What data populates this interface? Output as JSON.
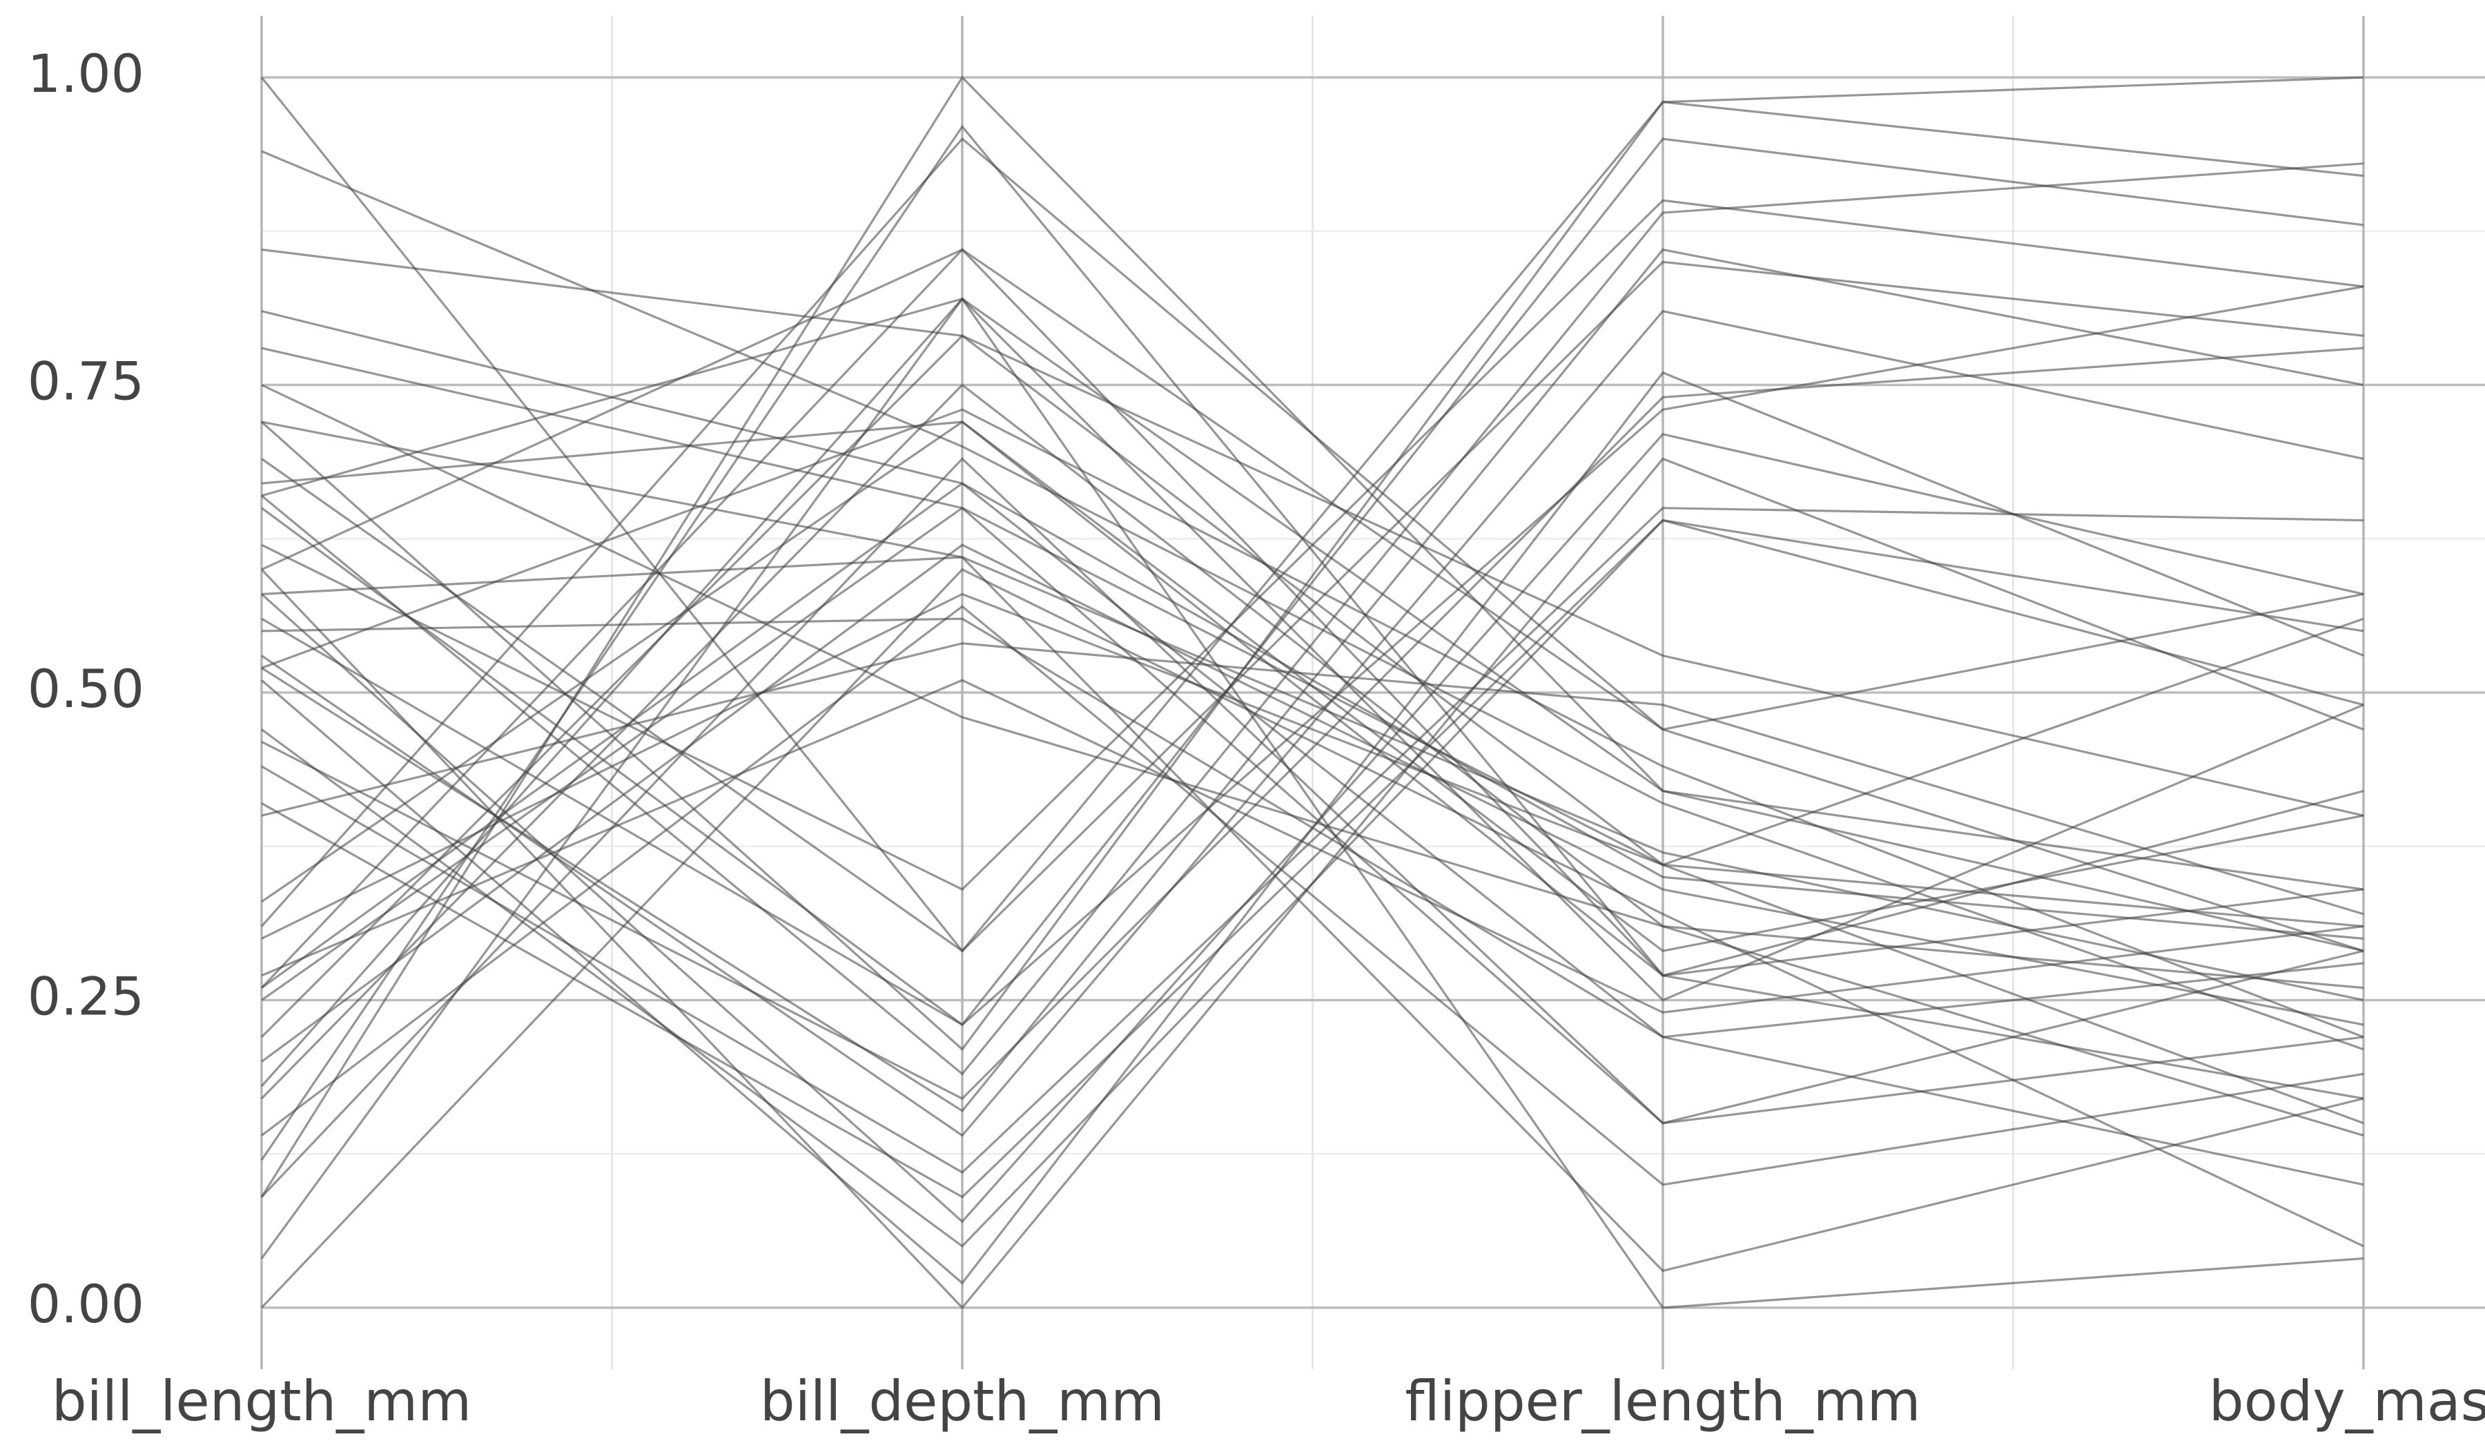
{
  "chart_data": {
    "type": "parallel",
    "categories": [
      "bill_length_mm",
      "bill_depth_mm",
      "flipper_length_mm",
      "body_mass"
    ],
    "ylim": [
      -0.05,
      1.05
    ],
    "yticks": [
      {
        "value": 0,
        "label": "0.00"
      },
      {
        "value": 0.25,
        "label": "0.25"
      },
      {
        "value": 0.5,
        "label": "0.50"
      },
      {
        "value": 0.75,
        "label": "0.75"
      },
      {
        "value": 1,
        "label": "1.00"
      }
    ],
    "minor_yticks": [
      0.125,
      0.375,
      0.625,
      0.875
    ],
    "grid": true,
    "color": "#404040",
    "series": [
      {
        "values": [
          0.25,
          0.65,
          0.15,
          0.29
        ]
      },
      {
        "values": [
          0.27,
          0.51,
          0.24,
          0.31
        ]
      },
      {
        "values": [
          0.3,
          0.58,
          0.36,
          0.15
        ]
      },
      {
        "values": [
          0.17,
          0.75,
          0.31,
          0.26
        ]
      },
      {
        "values": [
          0.26,
          0.86,
          0.27,
          0.42
        ]
      },
      {
        "values": [
          0.26,
          0.67,
          0.22,
          0.28
        ]
      },
      {
        "values": [
          0.09,
          0.69,
          0.15,
          0.22
        ]
      },
      {
        "values": [
          0.18,
          0.82,
          0.25,
          0.49
        ]
      },
      {
        "values": [
          0.12,
          0.96,
          0.27,
          0.34
        ]
      },
      {
        "values": [
          0.04,
          0.82,
          0.42,
          0.29
        ]
      },
      {
        "values": [
          0.2,
          0.62,
          0.34,
          0.23
        ]
      },
      {
        "values": [
          0.33,
          0.72,
          0.29,
          0.4
        ]
      },
      {
        "values": [
          0.14,
          0.57,
          0.1,
          0.19
        ]
      },
      {
        "values": [
          0.22,
          0.79,
          0.36,
          0.56
        ]
      },
      {
        "values": [
          0.0,
          0.6,
          0.32,
          0.05
        ]
      },
      {
        "values": [
          0.31,
          0.95,
          0.47,
          0.58
        ]
      },
      {
        "values": [
          0.47,
          0.05,
          0.64,
          0.55
        ]
      },
      {
        "values": [
          0.65,
          0.23,
          0.73,
          0.83
        ]
      },
      {
        "values": [
          0.53,
          0.14,
          0.81,
          0.69
        ]
      },
      {
        "values": [
          0.46,
          0.17,
          0.74,
          0.78
        ]
      },
      {
        "values": [
          0.58,
          0.07,
          0.71,
          0.58
        ]
      },
      {
        "values": [
          0.41,
          0.09,
          0.64,
          0.49
        ]
      },
      {
        "values": [
          0.69,
          0.29,
          0.98,
          0.92
        ]
      },
      {
        "values": [
          0.56,
          0.23,
          0.95,
          0.88
        ]
      },
      {
        "values": [
          0.52,
          0.16,
          0.86,
          0.75
        ]
      },
      {
        "values": [
          0.6,
          0.0,
          0.69,
          0.47
        ]
      },
      {
        "values": [
          0.62,
          0.34,
          0.9,
          0.83
        ]
      },
      {
        "values": [
          0.44,
          0.11,
          0.65,
          0.64
        ]
      },
      {
        "values": [
          1.0,
          0.29,
          0.85,
          0.79
        ]
      },
      {
        "values": [
          0.72,
          0.21,
          0.98,
          1.0
        ]
      },
      {
        "values": [
          0.51,
          0.02,
          0.76,
          0.53
        ]
      },
      {
        "values": [
          0.66,
          0.19,
          0.89,
          0.93
        ]
      },
      {
        "values": [
          0.72,
          0.61,
          0.37,
          0.25
        ]
      },
      {
        "values": [
          0.67,
          0.72,
          0.27,
          0.17
        ]
      },
      {
        "values": [
          0.81,
          0.67,
          0.35,
          0.3
        ]
      },
      {
        "values": [
          0.52,
          0.73,
          0.44,
          0.22
        ]
      },
      {
        "values": [
          0.94,
          0.7,
          0.41,
          0.21
        ]
      },
      {
        "values": [
          0.55,
          0.56,
          0.22,
          0.1
        ]
      },
      {
        "values": [
          0.86,
          0.79,
          0.53,
          0.4
        ]
      },
      {
        "values": [
          0.6,
          0.86,
          0.47,
          0.29
        ]
      },
      {
        "values": [
          0.75,
          0.48,
          0.31,
          0.14
        ]
      },
      {
        "values": [
          0.66,
          0.82,
          0.0,
          0.04
        ]
      },
      {
        "values": [
          0.58,
          0.61,
          0.03,
          0.17
        ]
      },
      {
        "values": [
          0.78,
          0.65,
          0.36,
          0.31
        ]
      },
      {
        "values": [
          0.09,
          1.0,
          0.42,
          0.34
        ]
      },
      {
        "values": [
          0.4,
          0.54,
          0.49,
          0.32
        ]
      }
    ]
  }
}
